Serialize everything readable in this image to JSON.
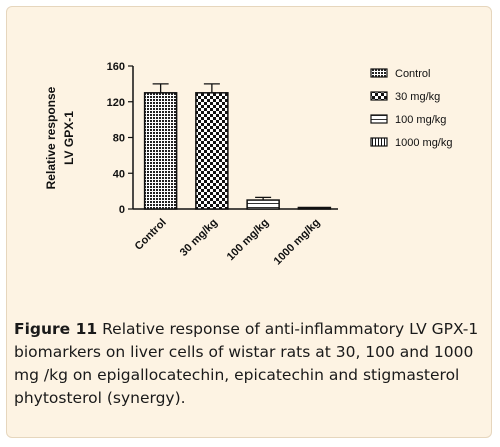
{
  "chart_data": {
    "type": "bar",
    "categories": [
      "Control",
      "30 mg/kg",
      "100 mg/kg",
      "1000 mg/kg"
    ],
    "values": [
      130,
      130,
      10,
      1
    ],
    "errors": [
      10,
      10,
      3,
      0.5
    ],
    "ylabel_lines": [
      "Relative response",
      "LV GPX-1"
    ],
    "ylim": [
      0,
      160
    ],
    "yticks": [
      0,
      40,
      80,
      120,
      160
    ],
    "legend": [
      "Control",
      "30 mg/kg",
      "100 mg/kg",
      "1000 mg/kg"
    ],
    "legend_position": "right",
    "grid": false,
    "patterns": [
      "dense-dots",
      "checker",
      "horizontal-lines",
      "vertical-lines"
    ]
  },
  "caption": {
    "label": "Figure 11",
    "text": " Relative response of anti-inflammatory LV GPX-1 biomarkers on liver cells of wistar rats at 30, 100 and 1000 mg /kg on epigallocatechin, epicatechin and stigmasterol phytosterol (synergy)."
  }
}
